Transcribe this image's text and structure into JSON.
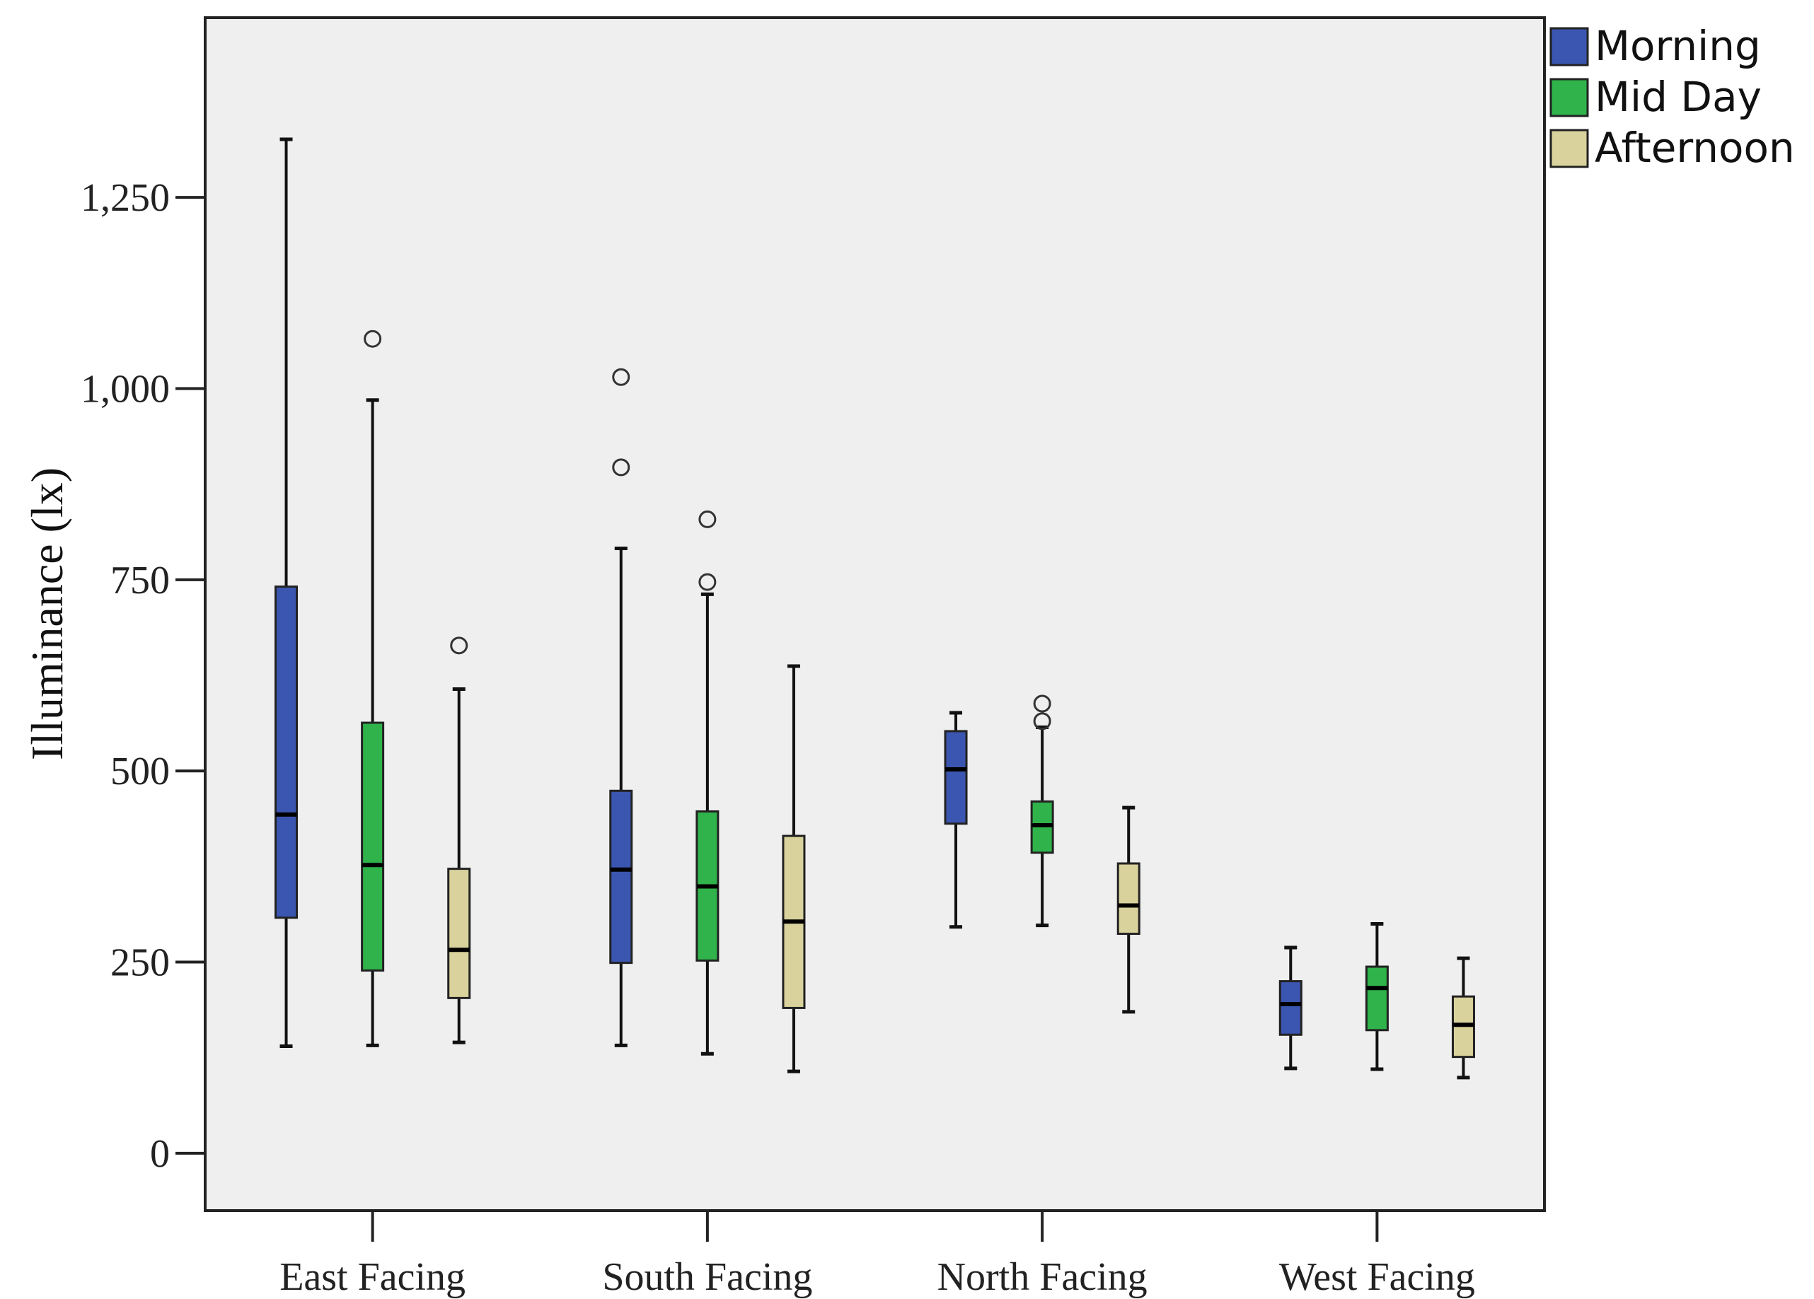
{
  "chart_data": {
    "type": "boxplot",
    "ylabel": "Illuminance (lx)",
    "xlabel": "",
    "ylim": [
      -75,
      1485
    ],
    "yticks": [
      0,
      250,
      500,
      750,
      1000,
      1250
    ],
    "ytick_labels": [
      "0",
      "250",
      "500",
      "750",
      "1,000",
      "1,250"
    ],
    "grid": false,
    "legend_position": "top-right, outside plot",
    "categories": [
      "East Facing",
      "South Facing",
      "North Facing",
      "West Facing"
    ],
    "series": [
      {
        "name": "Morning",
        "color": "#3b56b0",
        "boxes": [
          {
            "min": 140,
            "q1": 308,
            "median": 443,
            "q3": 741,
            "max": 1326,
            "outliers": []
          },
          {
            "min": 141,
            "q1": 249,
            "median": 371,
            "q3": 474,
            "max": 791,
            "outliers": [
              1015,
              897
            ]
          },
          {
            "min": 296,
            "q1": 431,
            "median": 502,
            "q3": 552,
            "max": 576,
            "outliers": []
          },
          {
            "min": 111,
            "q1": 155,
            "median": 195,
            "q3": 225,
            "max": 269,
            "outliers": []
          }
        ]
      },
      {
        "name": "Mid Day",
        "color": "#2fb34a",
        "boxes": [
          {
            "min": 141,
            "q1": 239,
            "median": 377,
            "q3": 563,
            "max": 985,
            "outliers": [
              1065
            ]
          },
          {
            "min": 130,
            "q1": 252,
            "median": 349,
            "q3": 447,
            "max": 731,
            "outliers": [
              829,
              747
            ]
          },
          {
            "min": 298,
            "q1": 393,
            "median": 429,
            "q3": 460,
            "max": 557,
            "outliers": [
              588,
              565
            ]
          },
          {
            "min": 110,
            "q1": 161,
            "median": 216,
            "q3": 244,
            "max": 300,
            "outliers": []
          }
        ]
      },
      {
        "name": "Afternoon",
        "color": "#d9d29c",
        "boxes": [
          {
            "min": 145,
            "q1": 203,
            "median": 266,
            "q3": 372,
            "max": 607,
            "outliers": [
              664
            ]
          },
          {
            "min": 107,
            "q1": 190,
            "median": 303,
            "q3": 415,
            "max": 637,
            "outliers": []
          },
          {
            "min": 185,
            "q1": 287,
            "median": 324,
            "q3": 379,
            "max": 452,
            "outliers": []
          },
          {
            "min": 99,
            "q1": 126,
            "median": 168,
            "q3": 205,
            "max": 255,
            "outliers": []
          }
        ]
      }
    ]
  }
}
